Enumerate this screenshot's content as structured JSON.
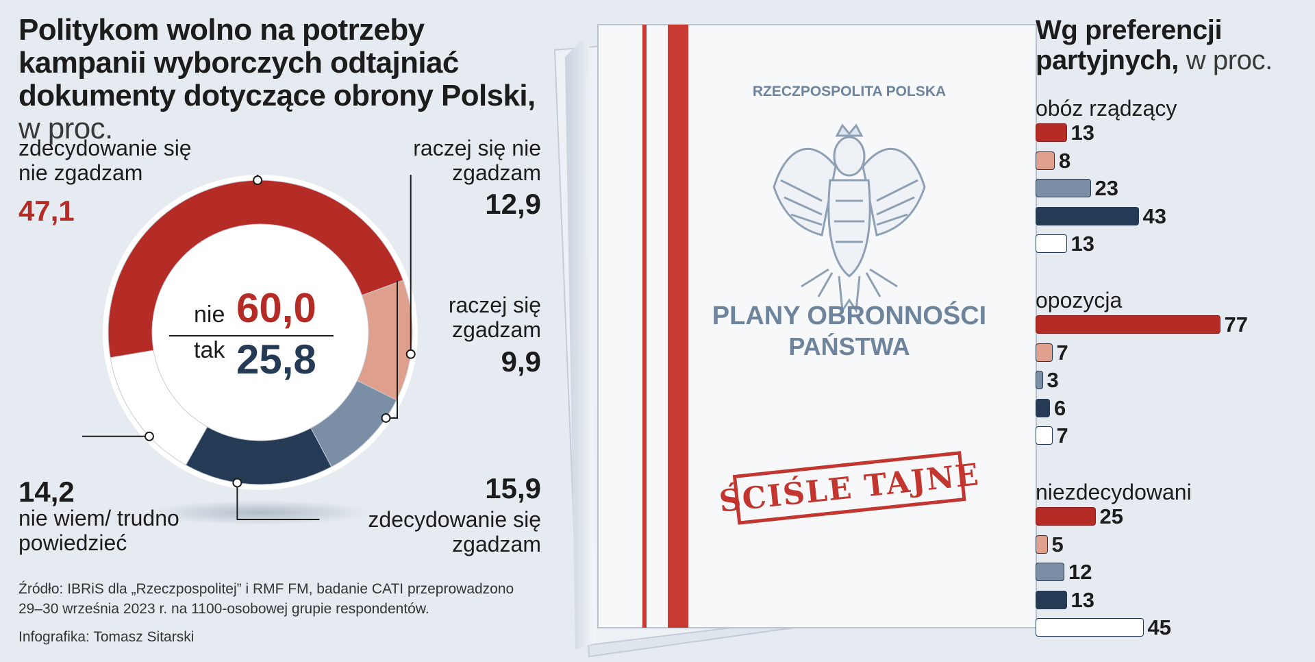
{
  "title": {
    "main": "Politykom wolno na potrzeby kampanii wyborczych odtajniać dokumenty dotyczące obrony Polski,",
    "unit": "w proc."
  },
  "chart_data": [
    {
      "type": "pie",
      "subtype": "donut",
      "slices": [
        {
          "label": "zdecydowanie się nie zgadzam",
          "value": 47.1,
          "value_text": "47,1",
          "color": "#b52b26"
        },
        {
          "label": "raczej się nie zgadzam",
          "value": 12.9,
          "value_text": "12,9",
          "color": "#dea08d"
        },
        {
          "label": "raczej się zgadzam",
          "value": 9.9,
          "value_text": "9,9",
          "color": "#7a8fa5"
        },
        {
          "label": "zdecydowanie się zgadzam",
          "value": 15.9,
          "value_text": "15,9",
          "color": "#243a55"
        },
        {
          "label": "nie wiem/ trudno powiedzieć",
          "value": 14.2,
          "value_text": "14,2",
          "color": "#ffffff"
        }
      ],
      "center": {
        "no_label": "nie",
        "no_value": "60,0",
        "yes_label": "tak",
        "yes_value": "25,8"
      }
    },
    {
      "type": "bar",
      "orientation": "horizontal",
      "title": "Wg preferencji partyjnych,",
      "unit": "w proc.",
      "series_colors": [
        "#b52b26",
        "#dea08d",
        "#7a8fa5",
        "#243a55",
        "#ffffff"
      ],
      "groups": [
        {
          "name": "obóz rządzący",
          "values": [
            13,
            8,
            23,
            43,
            13
          ]
        },
        {
          "name": "opozycja",
          "values": [
            77,
            7,
            3,
            6,
            7
          ]
        },
        {
          "name": "niezdecydowani",
          "values": [
            25,
            5,
            12,
            13,
            45
          ]
        }
      ]
    }
  ],
  "document": {
    "header": "RZECZPOSPOLITA POLSKA",
    "title_line1": "PLANY OBRONNOŚCI",
    "title_line2": "PAŃSTWA",
    "stamp": "ŚCIŚLE TAJNE"
  },
  "source": "Źródło: IBRiS dla „Rzeczpospolitej” i RMF FM, badanie CATI przeprowadzono 29–30 września 2023 r. na 1100-osobowej grupie respondentów.",
  "credit": "Infografika: Tomasz Sitarski"
}
